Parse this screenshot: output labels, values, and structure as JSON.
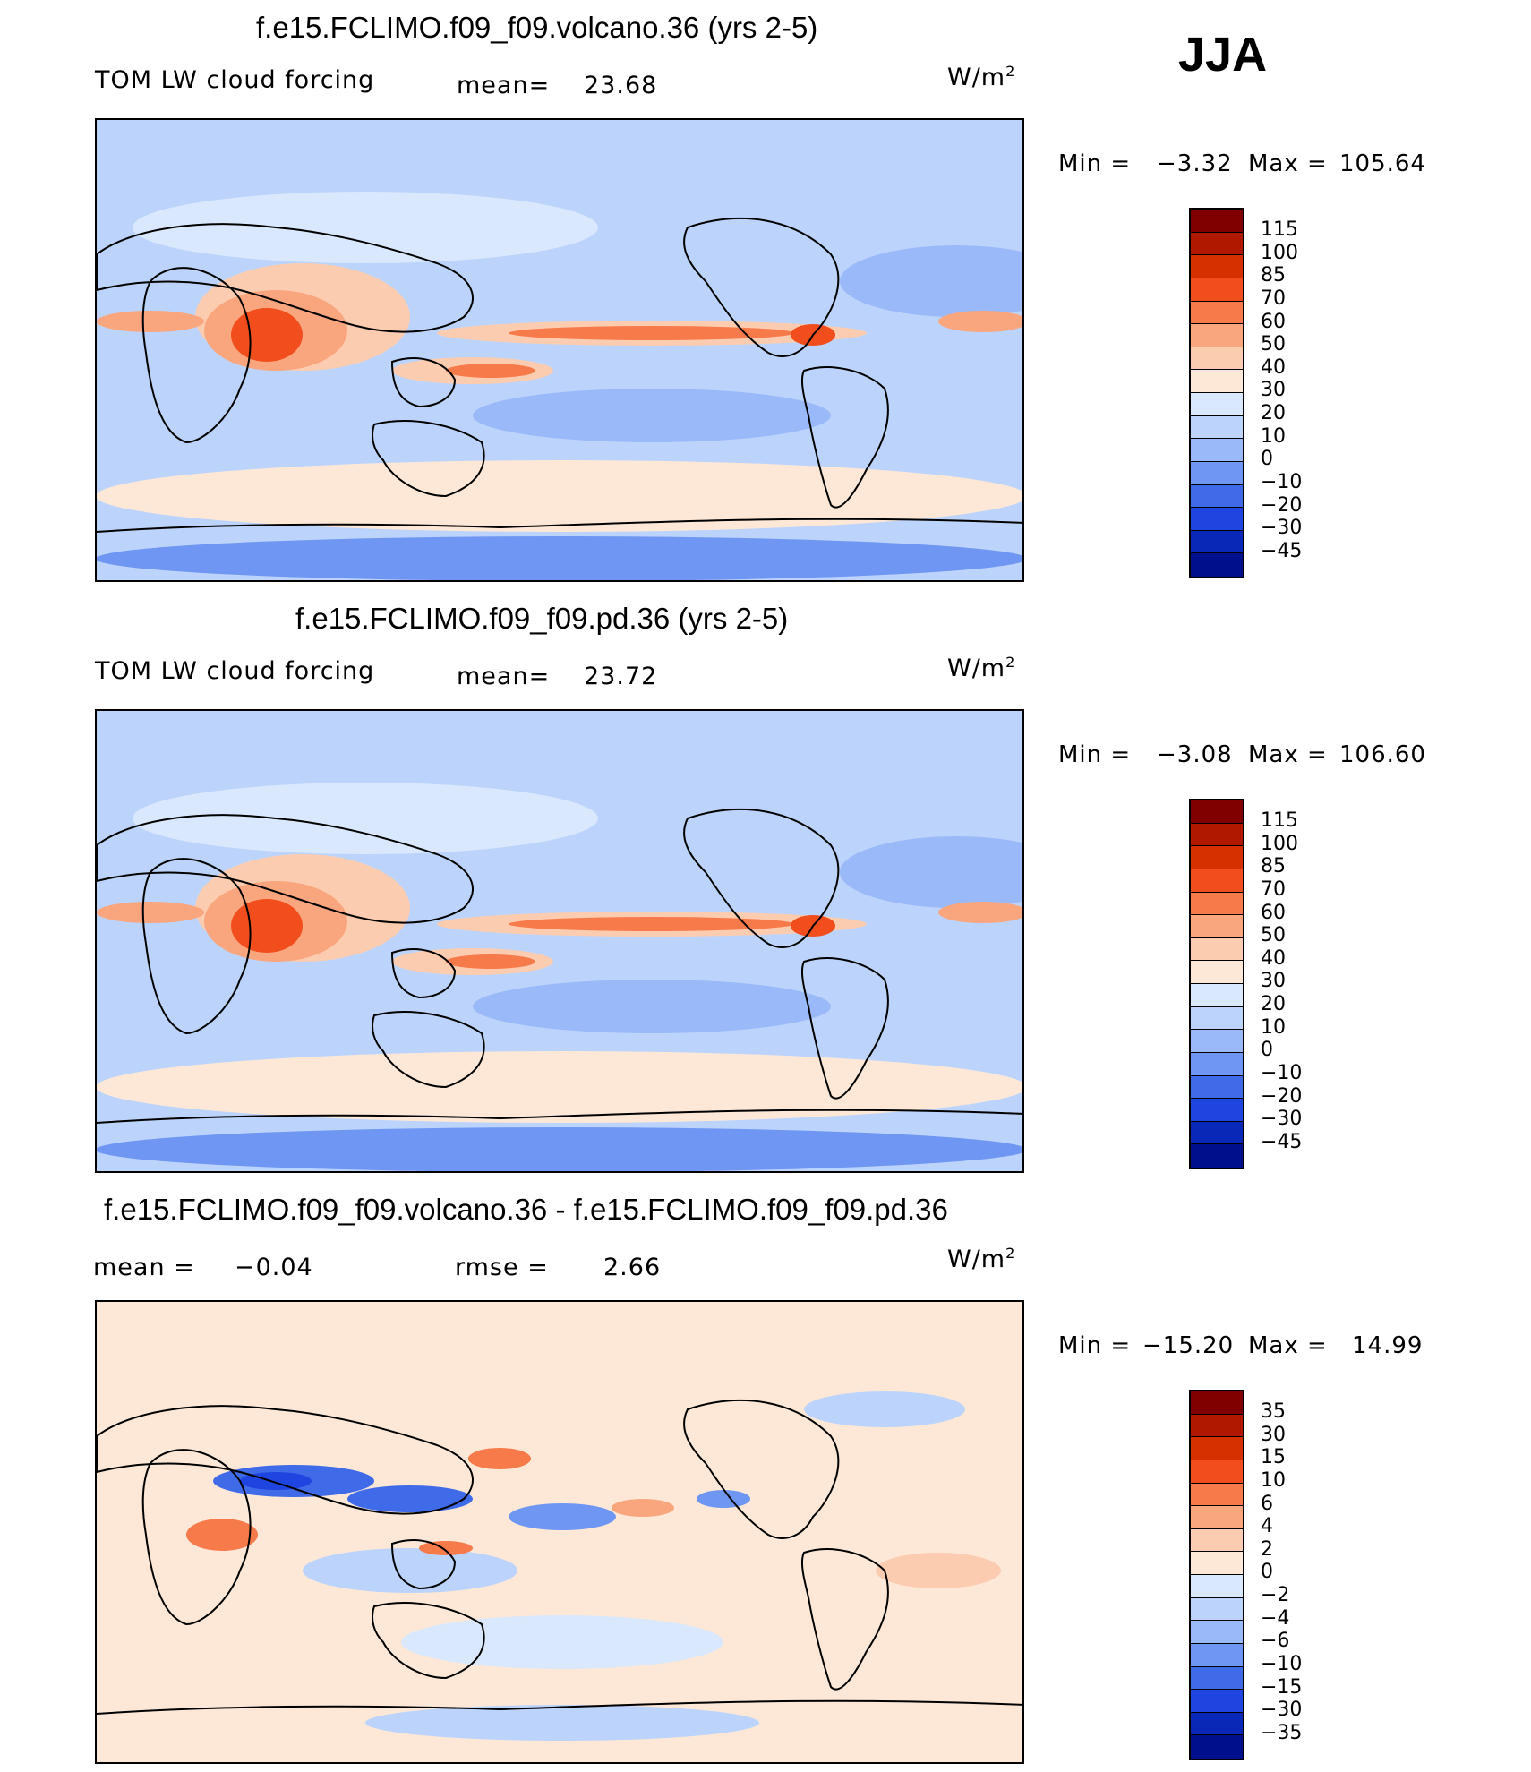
{
  "season": "JJA",
  "colors": {
    "full": [
      "#800000",
      "#b01800",
      "#d63000",
      "#f24d1c",
      "#f77a4a",
      "#f9a57d",
      "#fcccb0",
      "#fde8d8",
      "#d9e8fc",
      "#bcd4fb",
      "#9ab9f8",
      "#6f96f2",
      "#3f6ae8",
      "#1f45e0",
      "#0a28b8",
      "#00108c"
    ],
    "diff": [
      "#800000",
      "#b01800",
      "#d63000",
      "#f24d1c",
      "#f77a4a",
      "#f9a57d",
      "#fcccb0",
      "#fde8d8",
      "#d9e8fc",
      "#bcd4fb",
      "#9ab9f8",
      "#6f96f2",
      "#3f6ae8",
      "#1f45e0",
      "#0a28b8",
      "#00108c"
    ]
  },
  "icons": {
    "map": "world-map-pacific-centered"
  },
  "chart_data": [
    {
      "type": "heatmap",
      "title": "f.e15.FCLIMO.f09_f09.volcano.36 (yrs 2-5)",
      "variable": "TOM LW cloud forcing",
      "stat1_label": "mean=",
      "stat1_value": "23.68",
      "units": "W/m",
      "min_label": "Min =",
      "min_value": "−3.32",
      "max_label": "Max =",
      "max_value": "105.64",
      "legend_ticks": [
        "115",
        "100",
        "85",
        "70",
        "60",
        "50",
        "40",
        "30",
        "20",
        "10",
        "0",
        "−10",
        "−20",
        "−30",
        "−45"
      ]
    },
    {
      "type": "heatmap",
      "title": "f.e15.FCLIMO.f09_f09.pd.36 (yrs 2-5)",
      "variable": "TOM LW cloud forcing",
      "stat1_label": "mean=",
      "stat1_value": "23.72",
      "units": "W/m",
      "min_label": "Min =",
      "min_value": "−3.08",
      "max_label": "Max =",
      "max_value": "106.60",
      "legend_ticks": [
        "115",
        "100",
        "85",
        "70",
        "60",
        "50",
        "40",
        "30",
        "20",
        "10",
        "0",
        "−10",
        "−20",
        "−30",
        "−45"
      ]
    },
    {
      "type": "heatmap",
      "title": "f.e15.FCLIMO.f09_f09.volcano.36 - f.e15.FCLIMO.f09_f09.pd.36",
      "stat1_label": "mean =",
      "stat1_value": "−0.04",
      "stat2_label": "rmse =",
      "stat2_value": "2.66",
      "units": "W/m",
      "min_label": "Min =",
      "min_value": "−15.20",
      "max_label": "Max =",
      "max_value": "14.99",
      "legend_ticks": [
        "35",
        "30",
        "15",
        "10",
        "6",
        "4",
        "2",
        "0",
        "−2",
        "−4",
        "−6",
        "−10",
        "−15",
        "−30",
        "−35"
      ]
    }
  ]
}
